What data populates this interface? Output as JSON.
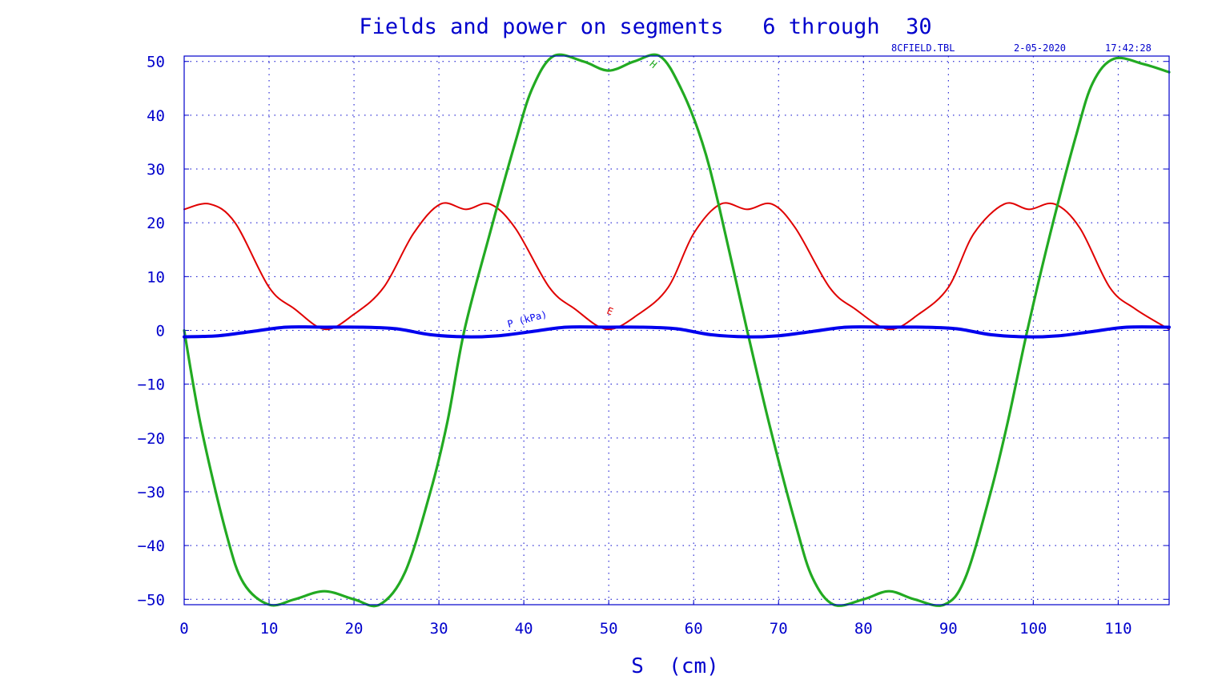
{
  "chart_data": {
    "type": "line",
    "title": "Fields and power on segments   6 through  30",
    "stamp": {
      "file": "8CFIELD.TBL",
      "date": "2-05-2020",
      "time": "17:42:28"
    },
    "xlabel": "S  (cm)",
    "ylabel": "",
    "xlim": [
      0,
      116
    ],
    "ylim": [
      -51,
      51
    ],
    "xticks": [
      0,
      10,
      20,
      30,
      40,
      50,
      60,
      70,
      80,
      90,
      100,
      110
    ],
    "yticks": [
      50,
      40,
      30,
      20,
      10,
      0,
      -10,
      -20,
      -30,
      -40,
      -50
    ],
    "grid": true,
    "series": [
      {
        "name": "E",
        "color": "#e00000",
        "x": [
          0,
          3,
          6,
          10,
          13,
          16.6,
          20,
          23.5,
          27,
          30.2,
          33.2,
          36,
          39,
          43,
          46,
          49.8,
          53.5,
          57,
          60,
          63.2,
          66.3,
          69.2,
          72,
          76,
          79,
          83,
          86.5,
          90,
          93,
          96.6,
          99.5,
          102.5,
          105.5,
          109,
          112,
          116
        ],
        "values": [
          22.5,
          23.5,
          20,
          8,
          4,
          0.2,
          3,
          8,
          18,
          23.5,
          22.5,
          23.5,
          19,
          8,
          4,
          0.2,
          3,
          8,
          18,
          23.5,
          22.5,
          23.5,
          19,
          8,
          4,
          0.2,
          3,
          8,
          18,
          23.5,
          22.5,
          23.5,
          19,
          8,
          4,
          0.2
        ]
      },
      {
        "name": "H",
        "color": "#22aa22",
        "x": [
          0,
          2,
          5,
          7,
          10,
          13,
          16.5,
          20,
          23,
          26,
          29,
          31,
          33,
          36,
          39,
          41,
          43.5,
          47,
          50,
          53,
          56,
          58.5,
          61,
          63,
          66.3,
          69,
          72,
          74,
          76.5,
          80,
          83,
          86,
          89.5,
          92,
          95,
          97,
          99.3,
          102,
          105,
          107,
          109.5,
          113,
          116
        ],
        "values": [
          0,
          -18,
          -38,
          -47,
          -51,
          -50,
          -48.5,
          -50,
          -51,
          -45,
          -30,
          -17,
          0,
          18,
          35,
          45,
          51,
          50,
          48.3,
          50,
          51,
          45,
          35,
          23,
          0,
          -18,
          -36,
          -46,
          -51,
          -50,
          -48.5,
          -50,
          -51,
          -46,
          -30,
          -17,
          0,
          18,
          36,
          46,
          50.5,
          49.5,
          48
        ]
      },
      {
        "name": "P (kPa)",
        "color": "#0000ee",
        "x": [
          0,
          4,
          8,
          12,
          16.5,
          21,
          25,
          29,
          33.2,
          37,
          41,
          45,
          49.8,
          54,
          58,
          62,
          66.3,
          70,
          74,
          78,
          83,
          87,
          91,
          95,
          99.3,
          103,
          107,
          111,
          116
        ],
        "values": [
          -1.2,
          -1,
          -0.2,
          0.6,
          0.6,
          0.6,
          0.3,
          -0.8,
          -1.2,
          -1,
          -0.2,
          0.6,
          0.6,
          0.6,
          0.3,
          -0.8,
          -1.2,
          -1,
          -0.2,
          0.6,
          0.6,
          0.6,
          0.3,
          -0.8,
          -1.2,
          -1,
          -0.2,
          0.6,
          0.6
        ]
      }
    ],
    "curve_labels": [
      {
        "text": "E",
        "series": "E",
        "x": 50,
        "y": 3
      },
      {
        "text": "H",
        "series": "H",
        "x": 55,
        "y": 49
      },
      {
        "text": "P (kPa)",
        "series": "P (kPa)",
        "x": 40.5,
        "y": 1.5
      }
    ]
  }
}
